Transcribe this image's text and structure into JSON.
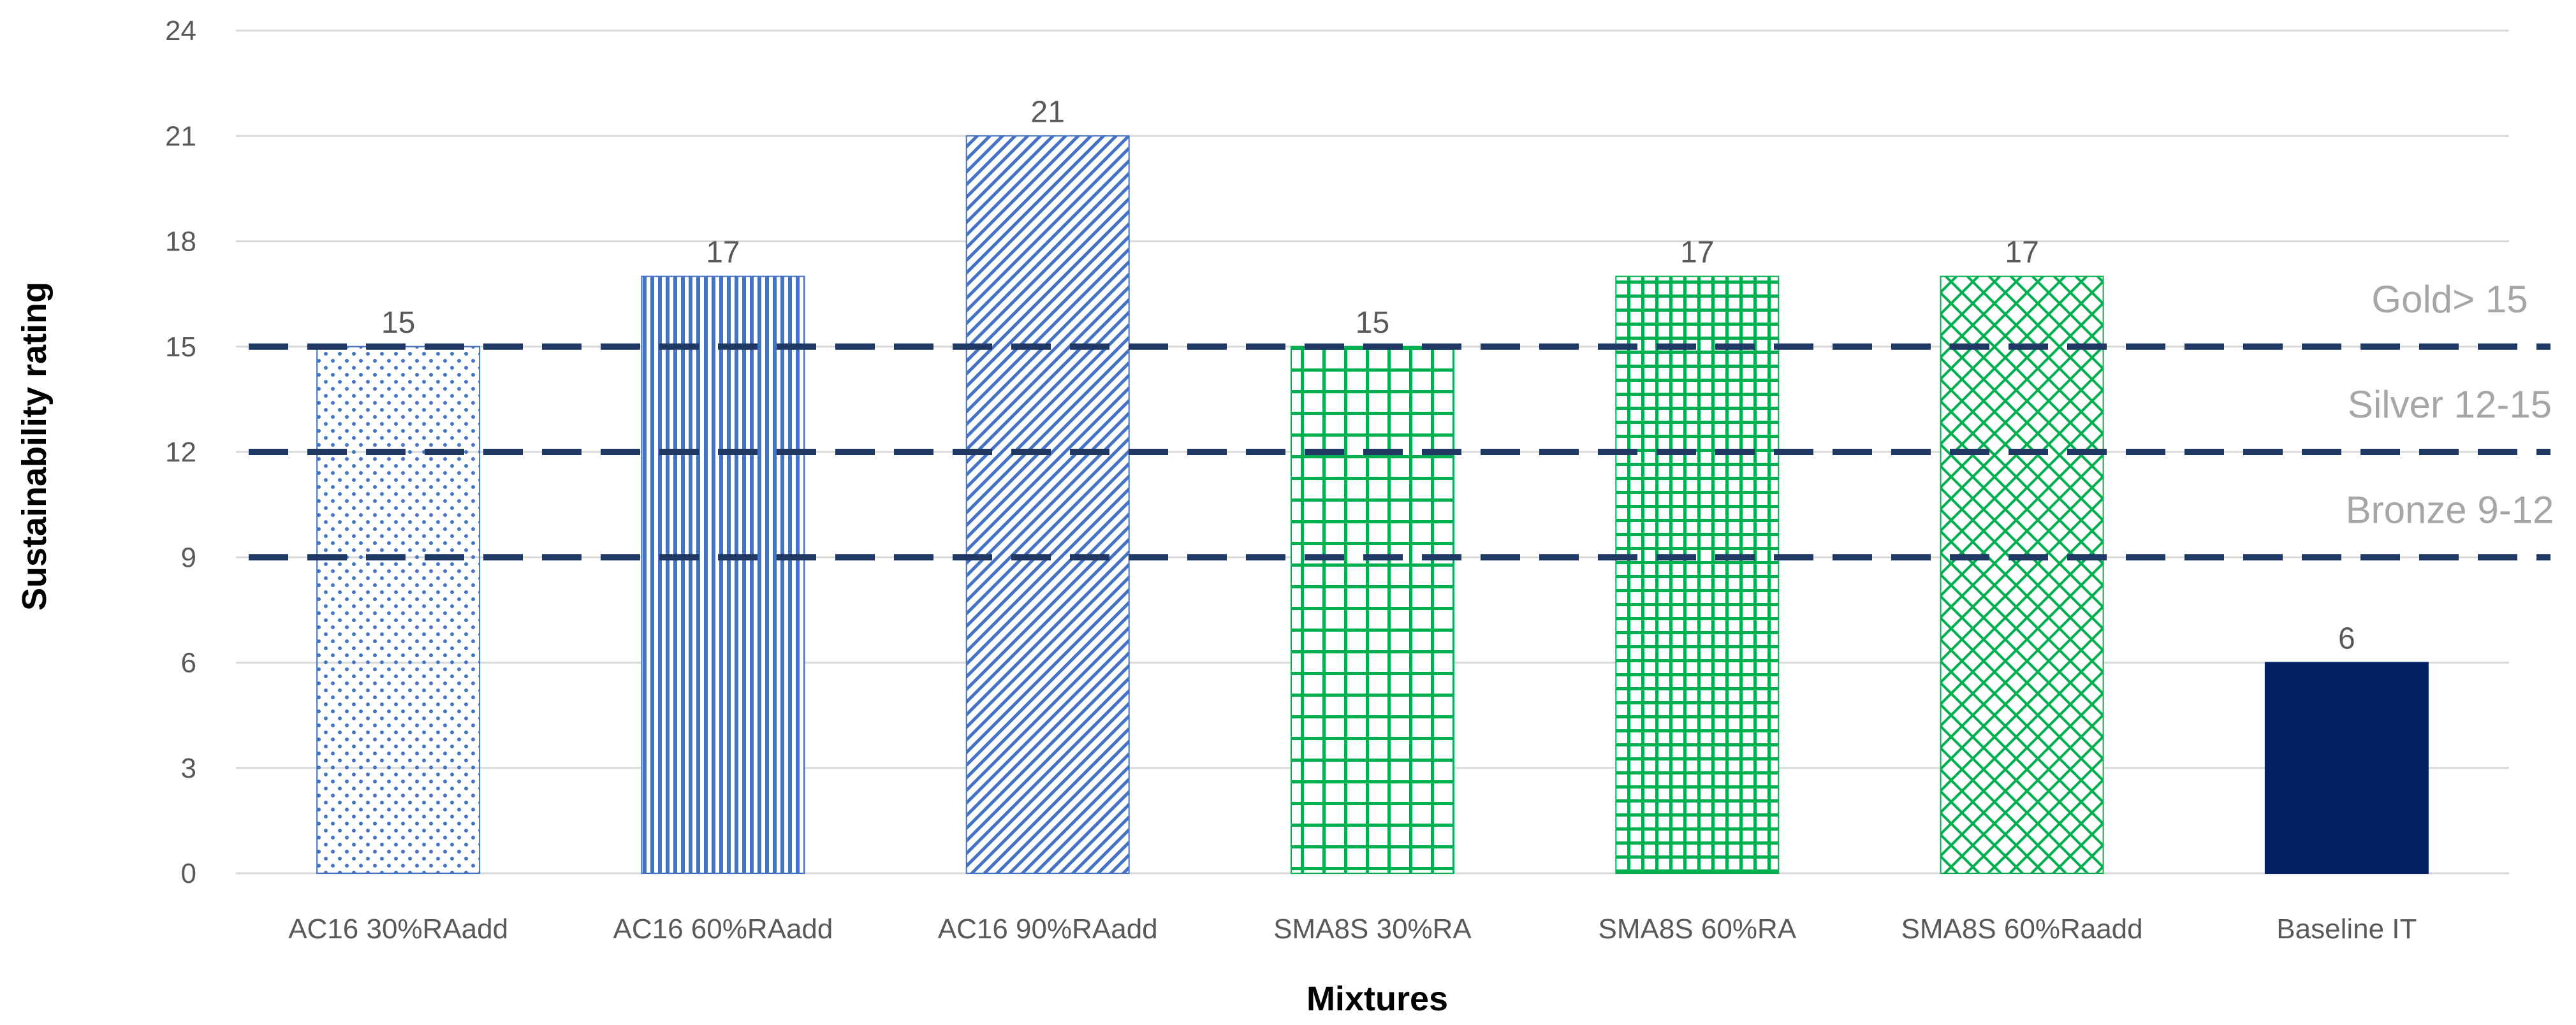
{
  "chart_data": {
    "type": "bar",
    "title": "",
    "xlabel": "Mixtures",
    "ylabel": "Sustainability rating",
    "ylim": [
      0,
      24
    ],
    "yticks": [
      0,
      3,
      6,
      9,
      12,
      15,
      18,
      21,
      24
    ],
    "grid": true,
    "categories": [
      "AC16 30%RAadd",
      "AC16 60%RAadd",
      "AC16 90%RAadd",
      "SMA8S 30%RA",
      "SMA8S 60%RA",
      "SMA8S 60%Raadd",
      "Baseline IT"
    ],
    "values": [
      15,
      17,
      21,
      15,
      17,
      17,
      6
    ],
    "data_labels": [
      "15",
      "17",
      "21",
      "15",
      "17",
      "17",
      "6"
    ],
    "bar_fills": [
      "dots-blue",
      "vertical-lines-blue",
      "diagonal-lines-blue",
      "grid-green",
      "fine-grid-green",
      "diamond-green",
      "solid-navy"
    ],
    "thresholds": [
      {
        "value": 15,
        "label": "Gold> 15"
      },
      {
        "value": 12,
        "label": "Silver 12-15"
      },
      {
        "value": 9,
        "label": "Bronze  9-12"
      }
    ],
    "colors": {
      "blue": "#4472c4",
      "green": "#00b050",
      "navy": "#002060",
      "threshold_line": "#1f3864",
      "grid": "#d9d9d9"
    }
  }
}
